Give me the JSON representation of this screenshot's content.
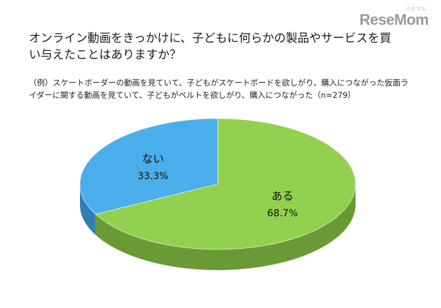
{
  "brand": {
    "sub": "リセマム",
    "name": "ReseMom"
  },
  "title": "オンライン動画をきっかけに、子どもに何らかの製品やサービスを買い与えたことはありますか？",
  "note": "（例）スケートボーダーの動画を見ていて、子どもがスケートボードを欲しがり、購入につながった仮面ライダーに関する動画を見ていて、子どもがベルトを欲しがり、購入につながった（n=279）",
  "chart_data": {
    "type": "pie",
    "title": "",
    "categories": [
      "ある",
      "ない"
    ],
    "values": [
      68.7,
      33.3
    ],
    "value_labels": [
      "68.7%",
      "33.3%"
    ],
    "colors": [
      "#92d050",
      "#4aaeea"
    ],
    "side_colors": [
      "#6a9a36",
      "#2f7fb0"
    ],
    "legend": "none",
    "style": "3d"
  }
}
